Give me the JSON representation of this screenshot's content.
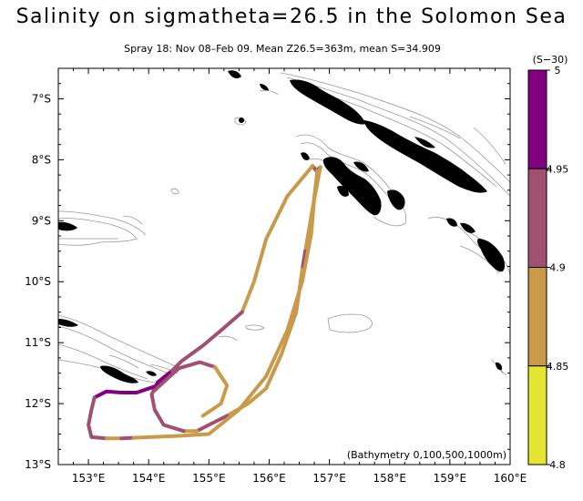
{
  "title": "Salinity on sigmatheta=26.5 in the Solomon Sea",
  "subtitle": "Spray 18: Nov 08–Feb 09.  Mean Z26.5=363m, mean S=34.909",
  "annotation": "(Bathymetry 0,100,500,1000m)",
  "map_extent": {
    "lon": [
      152.5,
      160.0
    ],
    "lat": [
      -13.0,
      -6.5
    ]
  },
  "x_ticks": [
    {
      "value": 153,
      "label": "153°E"
    },
    {
      "value": 154,
      "label": "154°E"
    },
    {
      "value": 155,
      "label": "155°E"
    },
    {
      "value": 156,
      "label": "156°E"
    },
    {
      "value": 157,
      "label": "157°E"
    },
    {
      "value": 158,
      "label": "158°E"
    },
    {
      "value": 159,
      "label": "159°E"
    },
    {
      "value": 160,
      "label": "160°E"
    }
  ],
  "y_ticks": [
    {
      "value": -7,
      "label": "7°S"
    },
    {
      "value": -8,
      "label": "8°S"
    },
    {
      "value": -9,
      "label": "9°S"
    },
    {
      "value": -10,
      "label": "10°S"
    },
    {
      "value": -11,
      "label": "11°S"
    },
    {
      "value": -12,
      "label": "12°S"
    },
    {
      "value": -13,
      "label": "13°S"
    }
  ],
  "colorbar": {
    "title": "(S−30)",
    "bins": [
      {
        "min": 4.95,
        "max": 5.0,
        "color": "#800080"
      },
      {
        "min": 4.9,
        "max": 4.95,
        "color": "#a25070"
      },
      {
        "min": 4.85,
        "max": 4.9,
        "color": "#c89a4a"
      },
      {
        "min": 4.8,
        "max": 4.85,
        "color": "#e4e432"
      }
    ],
    "tick_labels": [
      "5",
      "4.95",
      "4.9",
      "4.85",
      "4.8"
    ]
  },
  "track_segments": [
    {
      "bin": 1,
      "points": [
        [
          156.72,
          -8.1
        ],
        [
          156.78,
          -8.18
        ],
        [
          156.85,
          -8.12
        ]
      ]
    },
    {
      "bin": 2,
      "points": [
        [
          156.85,
          -8.12
        ],
        [
          156.72,
          -8.8
        ],
        [
          156.6,
          -9.5
        ]
      ]
    },
    {
      "bin": 1,
      "points": [
        [
          156.6,
          -9.5
        ],
        [
          156.55,
          -9.8
        ]
      ]
    },
    {
      "bin": 2,
      "points": [
        [
          156.55,
          -9.8
        ],
        [
          156.45,
          -10.5
        ],
        [
          156.2,
          -11.2
        ],
        [
          155.95,
          -11.75
        ],
        [
          155.65,
          -12.0
        ],
        [
          155.3,
          -12.2
        ]
      ]
    },
    {
      "bin": 1,
      "points": [
        [
          155.3,
          -12.2
        ],
        [
          155.0,
          -12.35
        ],
        [
          154.8,
          -12.45
        ]
      ]
    },
    {
      "bin": 2,
      "points": [
        [
          154.8,
          -12.45
        ],
        [
          154.58,
          -12.45
        ]
      ]
    },
    {
      "bin": 1,
      "points": [
        [
          154.58,
          -12.45
        ],
        [
          154.25,
          -12.35
        ],
        [
          154.1,
          -12.1
        ],
        [
          154.05,
          -11.85
        ],
        [
          154.15,
          -11.65
        ]
      ]
    },
    {
      "bin": 0,
      "points": [
        [
          154.15,
          -11.65
        ],
        [
          154.4,
          -11.45
        ],
        [
          154.1,
          -11.72
        ],
        [
          153.8,
          -11.82
        ],
        [
          153.55,
          -11.82
        ],
        [
          153.3,
          -11.8
        ],
        [
          153.1,
          -11.9
        ]
      ]
    },
    {
      "bin": 1,
      "points": [
        [
          153.1,
          -11.9
        ],
        [
          153.05,
          -12.1
        ],
        [
          153.0,
          -12.35
        ],
        [
          153.05,
          -12.55
        ],
        [
          153.3,
          -12.57
        ]
      ]
    },
    {
      "bin": 2,
      "points": [
        [
          153.3,
          -12.57
        ],
        [
          153.55,
          -12.57
        ]
      ]
    },
    {
      "bin": 1,
      "points": [
        [
          153.55,
          -12.57
        ],
        [
          153.75,
          -12.56
        ]
      ]
    },
    {
      "bin": 2,
      "points": [
        [
          153.75,
          -12.56
        ],
        [
          154.5,
          -12.53
        ],
        [
          155.0,
          -12.5
        ],
        [
          155.5,
          -12.1
        ],
        [
          155.95,
          -11.55
        ],
        [
          156.3,
          -10.8
        ],
        [
          156.55,
          -10.0
        ],
        [
          156.7,
          -9.2
        ],
        [
          156.75,
          -8.6
        ],
        [
          156.8,
          -8.18
        ]
      ]
    },
    {
      "bin": 2,
      "points": [
        [
          156.72,
          -8.1
        ],
        [
          156.3,
          -8.6
        ],
        [
          155.95,
          -9.3
        ],
        [
          155.75,
          -10.0
        ],
        [
          155.55,
          -10.5
        ]
      ]
    },
    {
      "bin": 1,
      "points": [
        [
          155.55,
          -10.5
        ],
        [
          155.2,
          -10.8
        ],
        [
          154.9,
          -11.05
        ],
        [
          154.55,
          -11.3
        ],
        [
          154.35,
          -11.5
        ]
      ]
    },
    {
      "bin": 0,
      "points": [
        [
          154.35,
          -11.5
        ],
        [
          154.2,
          -11.65
        ],
        [
          154.1,
          -11.78
        ]
      ]
    },
    {
      "bin": 1,
      "points": [
        [
          154.1,
          -11.78
        ],
        [
          154.5,
          -11.42
        ],
        [
          154.85,
          -11.32
        ],
        [
          155.1,
          -11.4
        ]
      ]
    },
    {
      "bin": 2,
      "points": [
        [
          155.1,
          -11.4
        ],
        [
          155.3,
          -11.7
        ],
        [
          155.2,
          -12.0
        ],
        [
          154.9,
          -12.2
        ]
      ]
    }
  ]
}
